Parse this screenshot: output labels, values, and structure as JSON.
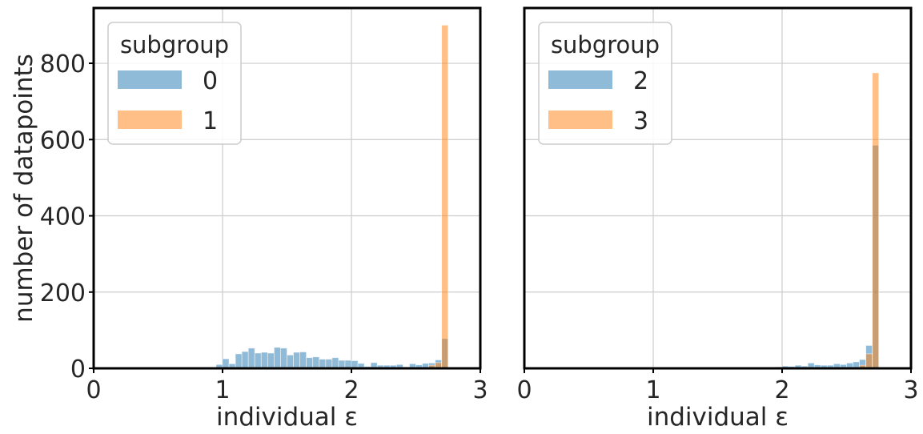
{
  "figure": {
    "ylabel": "number of datapoints"
  },
  "chart_data": [
    {
      "type": "bar",
      "subtype": "overlapping-histogram",
      "xlabel": "individual ε",
      "ylabel": "number of datapoints",
      "xlim": [
        0,
        3
      ],
      "ylim": [
        0,
        945
      ],
      "xticks": [
        0,
        1,
        2,
        3
      ],
      "yticks": [
        0,
        200,
        400,
        600,
        800
      ],
      "grid": true,
      "legend": {
        "title": "subgroup",
        "placement": "top-left"
      },
      "series": [
        {
          "name": "0",
          "color": "#1f77b4",
          "bins": [
            [
              0.9,
              2
            ],
            [
              0.95,
              10
            ],
            [
              1.0,
              25
            ],
            [
              1.05,
              12
            ],
            [
              1.1,
              38
            ],
            [
              1.15,
              44
            ],
            [
              1.2,
              53
            ],
            [
              1.25,
              40
            ],
            [
              1.3,
              42
            ],
            [
              1.35,
              40
            ],
            [
              1.4,
              55
            ],
            [
              1.45,
              53
            ],
            [
              1.5,
              35
            ],
            [
              1.55,
              42
            ],
            [
              1.6,
              43
            ],
            [
              1.65,
              28
            ],
            [
              1.7,
              30
            ],
            [
              1.75,
              24
            ],
            [
              1.8,
              24
            ],
            [
              1.85,
              28
            ],
            [
              1.9,
              21
            ],
            [
              1.95,
              21
            ],
            [
              2.0,
              20
            ],
            [
              2.05,
              13
            ],
            [
              2.1,
              5
            ],
            [
              2.15,
              15
            ],
            [
              2.2,
              8
            ],
            [
              2.25,
              8
            ],
            [
              2.3,
              8
            ],
            [
              2.35,
              10
            ],
            [
              2.4,
              4
            ],
            [
              2.45,
              12
            ],
            [
              2.5,
              9
            ],
            [
              2.55,
              13
            ],
            [
              2.6,
              14
            ],
            [
              2.65,
              22
            ],
            [
              2.7,
              78
            ]
          ]
        },
        {
          "name": "1",
          "color": "#ff7f0e",
          "bins": [
            [
              2.6,
              8
            ],
            [
              2.65,
              15
            ],
            [
              2.7,
              900
            ]
          ]
        }
      ]
    },
    {
      "type": "bar",
      "subtype": "overlapping-histogram",
      "xlabel": "individual ε",
      "xlim": [
        0,
        3
      ],
      "ylim": [
        0,
        945
      ],
      "xticks": [
        0,
        1,
        2,
        3
      ],
      "yticks": [
        0,
        200,
        400,
        600,
        800
      ],
      "grid": true,
      "legend": {
        "title": "subgroup",
        "placement": "top-left"
      },
      "series": [
        {
          "name": "2",
          "color": "#1f77b4",
          "bins": [
            [
              1.55,
              2
            ],
            [
              1.65,
              2
            ],
            [
              1.9,
              3
            ],
            [
              1.95,
              4
            ],
            [
              2.0,
              6
            ],
            [
              2.05,
              5
            ],
            [
              2.1,
              8
            ],
            [
              2.15,
              6
            ],
            [
              2.2,
              14
            ],
            [
              2.25,
              9
            ],
            [
              2.3,
              8
            ],
            [
              2.35,
              8
            ],
            [
              2.4,
              12
            ],
            [
              2.45,
              10
            ],
            [
              2.5,
              14
            ],
            [
              2.55,
              17
            ],
            [
              2.6,
              23
            ],
            [
              2.65,
              60
            ],
            [
              2.7,
              585
            ]
          ]
        },
        {
          "name": "3",
          "color": "#ff7f0e",
          "bins": [
            [
              2.6,
              8
            ],
            [
              2.65,
              38
            ],
            [
              2.7,
              775
            ]
          ]
        }
      ]
    }
  ]
}
